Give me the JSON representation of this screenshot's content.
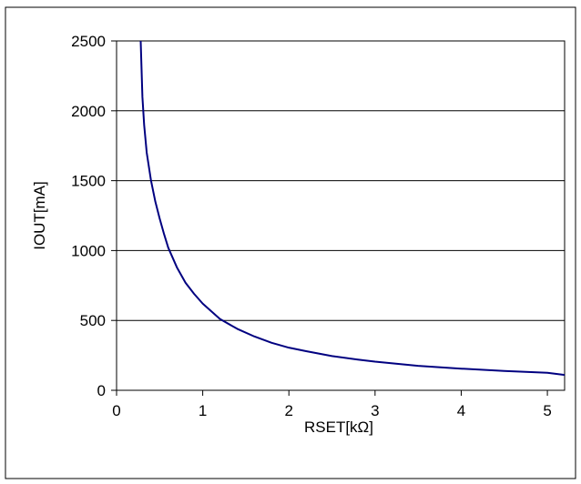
{
  "chart_data": {
    "type": "line",
    "title": "",
    "xlabel": "RSET[kΩ]",
    "ylabel": "IOUT[mA]",
    "xlim": [
      0,
      5.2
    ],
    "ylim": [
      0,
      2500
    ],
    "x_ticks": [
      0,
      1,
      2,
      3,
      4,
      5
    ],
    "y_ticks": [
      0,
      500,
      1000,
      1500,
      2000,
      2500
    ],
    "grid": "horizontal",
    "legend": "none",
    "colors": {
      "series": "#000080",
      "grid": "#000000",
      "frame": "#000000"
    },
    "series": [
      {
        "values_x": [
          0.28,
          0.3,
          0.32,
          0.35,
          0.4,
          0.45,
          0.5,
          0.55,
          0.6,
          0.7,
          0.8,
          0.9,
          1.0,
          1.2,
          1.4,
          1.6,
          1.8,
          2.0,
          2.2,
          2.5,
          2.8,
          3.0,
          3.5,
          4.0,
          4.5,
          5.0,
          5.2
        ],
        "values_y": [
          2500,
          2100,
          1900,
          1700,
          1500,
          1350,
          1230,
          1120,
          1020,
          880,
          770,
          690,
          620,
          510,
          440,
          385,
          340,
          305,
          280,
          245,
          220,
          205,
          175,
          155,
          138,
          125,
          110
        ]
      }
    ]
  }
}
